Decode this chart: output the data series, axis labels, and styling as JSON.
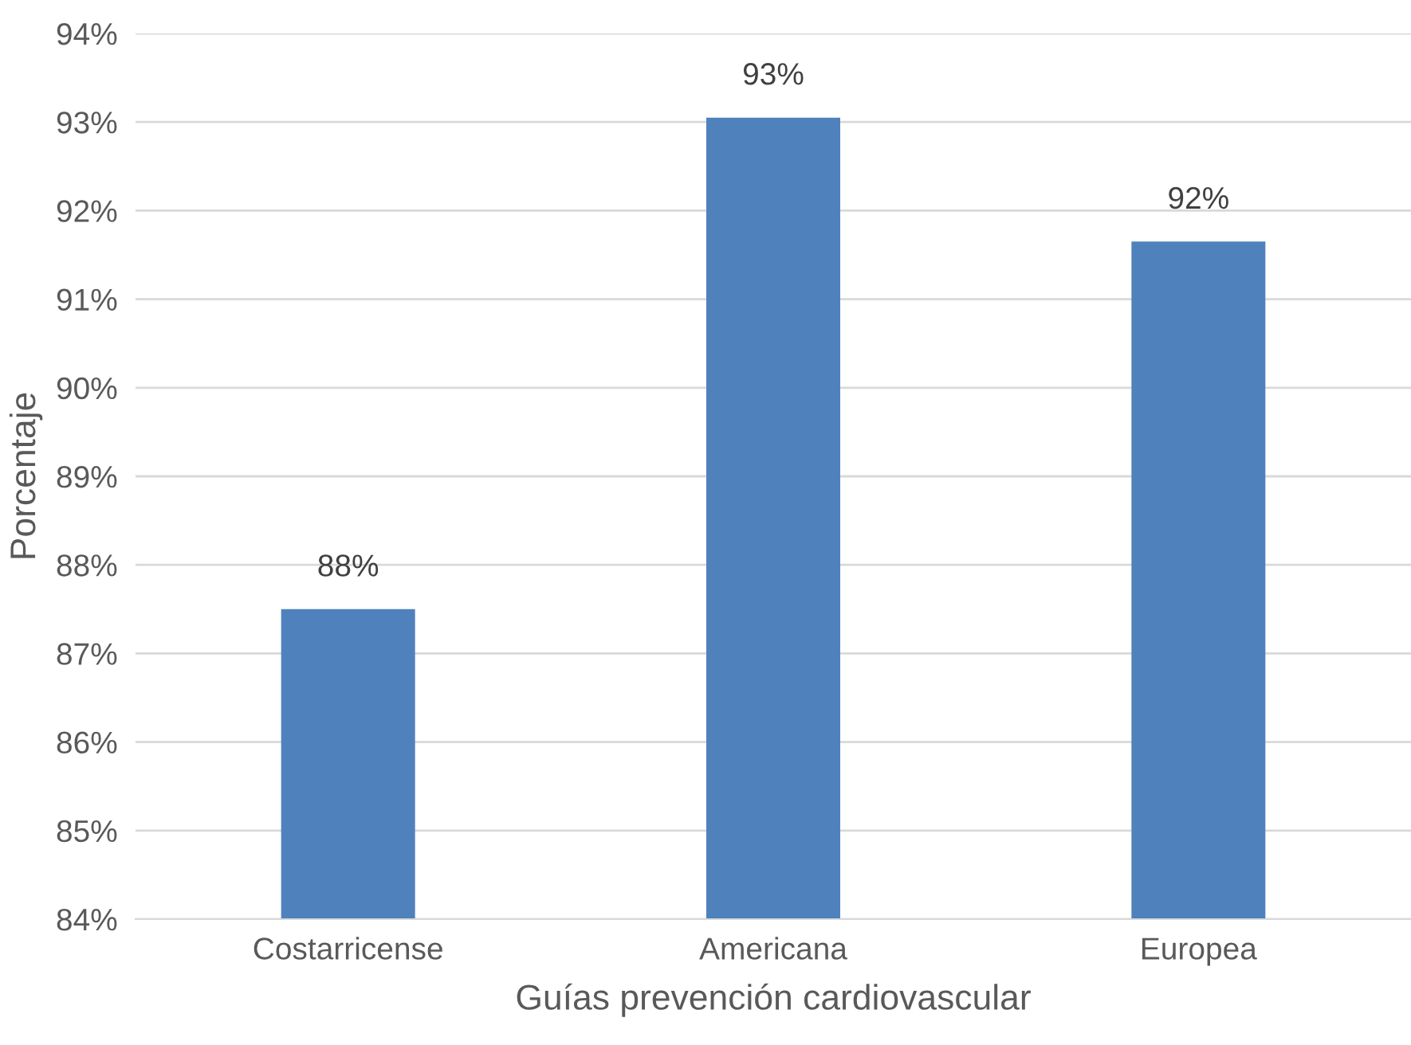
{
  "chart_data": {
    "type": "bar",
    "xlabel": "Guías prevención cardiovascular",
    "ylabel": "Porcentaje",
    "categories": [
      "Costarricense",
      "Americana",
      "Europea"
    ],
    "values": [
      87.5,
      93.05,
      91.65
    ],
    "color": "#4f81bd",
    "value_labels": [
      "88%",
      "93%",
      "92%"
    ],
    "ylim": [
      84,
      94
    ],
    "yticks": [
      {
        "value": 84,
        "label": "84%"
      },
      {
        "value": 85,
        "label": "85%"
      },
      {
        "value": 86,
        "label": "86%"
      },
      {
        "value": 87,
        "label": "87%"
      },
      {
        "value": 88,
        "label": "88%"
      },
      {
        "value": 89,
        "label": "89%"
      },
      {
        "value": 90,
        "label": "90%"
      },
      {
        "value": 91,
        "label": "91%"
      },
      {
        "value": 92,
        "label": "92%"
      },
      {
        "value": 93,
        "label": "93%"
      },
      {
        "value": 94,
        "label": "94%"
      }
    ],
    "grid": "y",
    "legend": false
  }
}
